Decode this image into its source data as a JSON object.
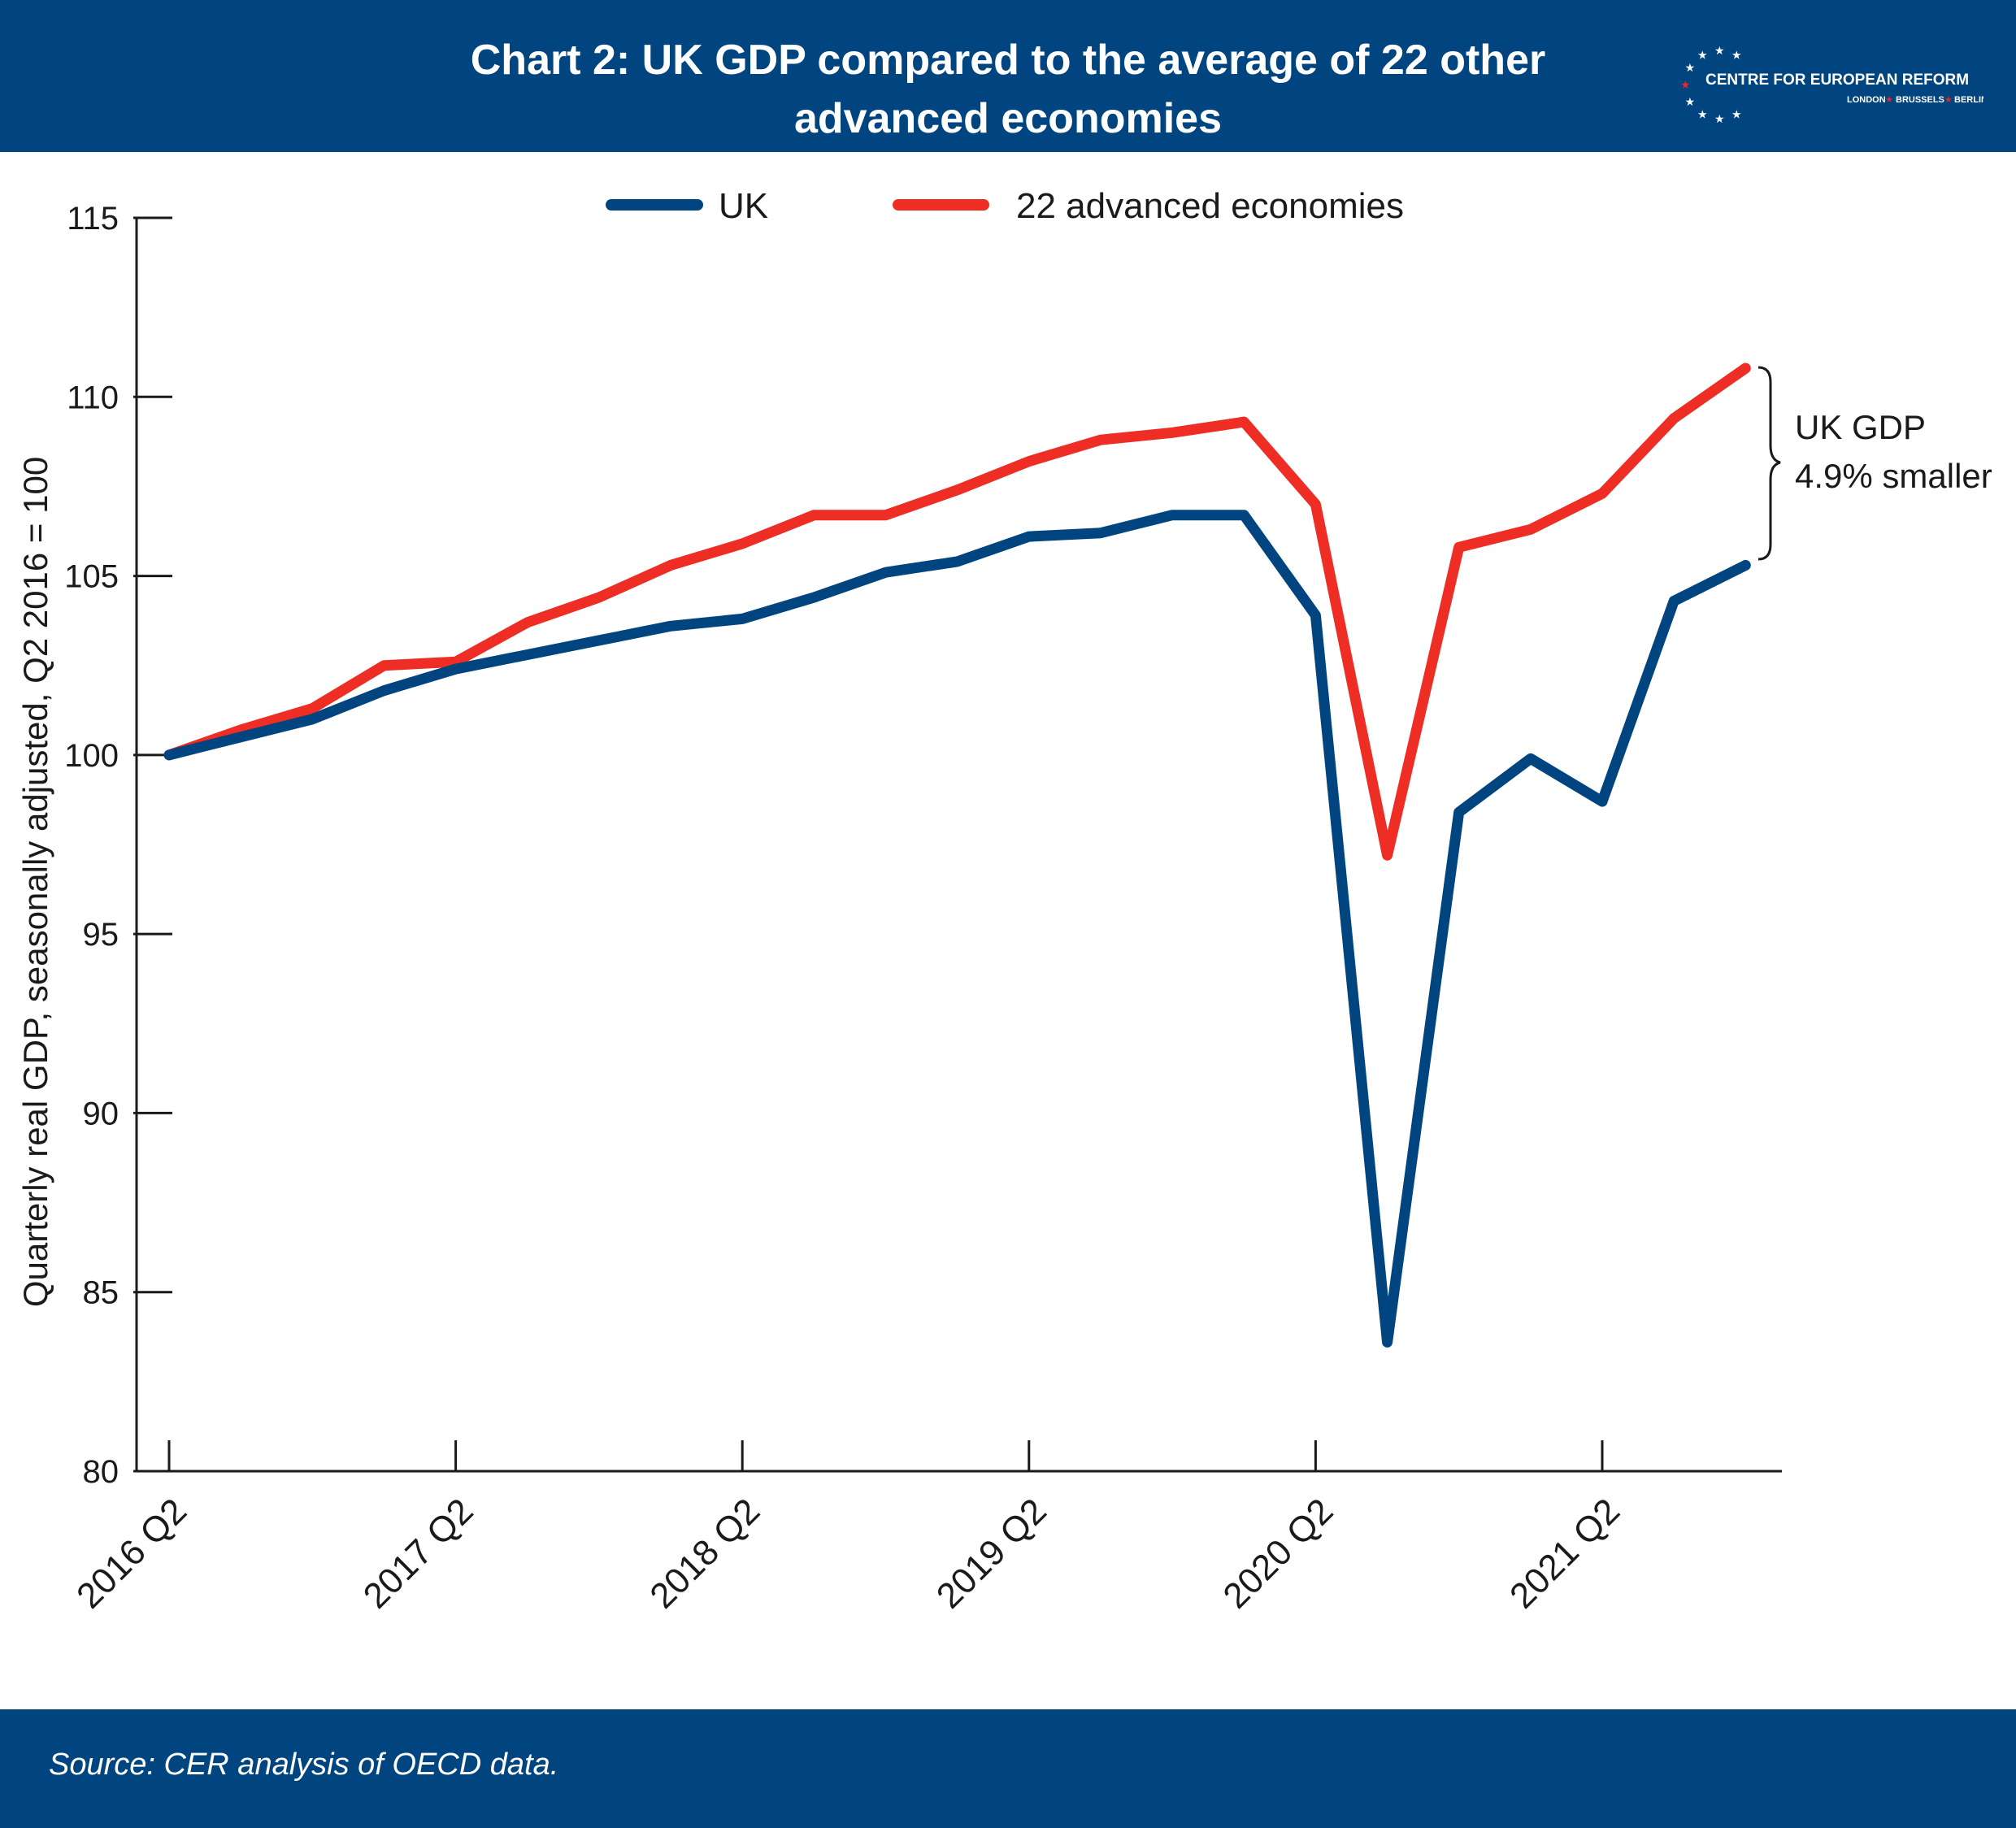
{
  "header": {
    "title": "Chart 2: UK GDP compared to the average of 22 other\nadvanced economies",
    "logo": {
      "name": "CENTRE FOR EUROPEAN REFORM",
      "cities": [
        "LONDON",
        "BRUSSELS",
        "BERLIN"
      ]
    }
  },
  "footer": {
    "source": "Source: CER analysis of OECD data."
  },
  "colors": {
    "header_bg": "#00457f",
    "uk": "#00457f",
    "advanced": "#ee2e24",
    "star_red": "#e8262b"
  },
  "chart_data": {
    "type": "line",
    "title": "",
    "ylabel": "Quarterly real GDP, seasonally adjusted, Q2 2016 = 100",
    "xlabel": "",
    "ylim": [
      80,
      115
    ],
    "yticks": [
      80,
      85,
      90,
      95,
      100,
      105,
      110,
      115
    ],
    "x_ticks": [
      "2016 Q2",
      "2017 Q2",
      "2018 Q2",
      "2019 Q2",
      "2020 Q2",
      "2021 Q2"
    ],
    "legend_position": "top-center",
    "grid": false,
    "x": [
      "2016 Q2",
      "2016 Q3",
      "2016 Q4",
      "2017 Q1",
      "2017 Q2",
      "2017 Q3",
      "2017 Q4",
      "2018 Q1",
      "2018 Q2",
      "2018 Q3",
      "2018 Q4",
      "2019 Q1",
      "2019 Q2",
      "2019 Q3",
      "2019 Q4",
      "2020 Q1",
      "2020 Q2",
      "2020 Q3",
      "2020 Q4",
      "2021 Q1",
      "2021 Q2",
      "2021 Q3",
      "2021 Q4"
    ],
    "series": [
      {
        "name": "UK",
        "color": "#00457f",
        "values": [
          100.0,
          100.5,
          101.0,
          101.8,
          102.4,
          102.8,
          103.2,
          103.6,
          103.8,
          104.4,
          105.1,
          105.4,
          106.1,
          106.2,
          106.7,
          106.7,
          103.9,
          83.6,
          98.4,
          99.9,
          98.7,
          104.3,
          105.3
        ]
      },
      {
        "name": "22 advanced economies",
        "color": "#ee2e24",
        "values": [
          100.0,
          100.7,
          101.3,
          102.5,
          102.6,
          103.7,
          104.4,
          105.3,
          105.9,
          106.7,
          106.7,
          107.4,
          108.2,
          108.8,
          109.0,
          109.3,
          107.0,
          97.2,
          105.8,
          106.3,
          107.3,
          109.4,
          110.8
        ]
      }
    ],
    "annotation": {
      "line1": "UK GDP",
      "line2": "4.9% smaller"
    }
  }
}
